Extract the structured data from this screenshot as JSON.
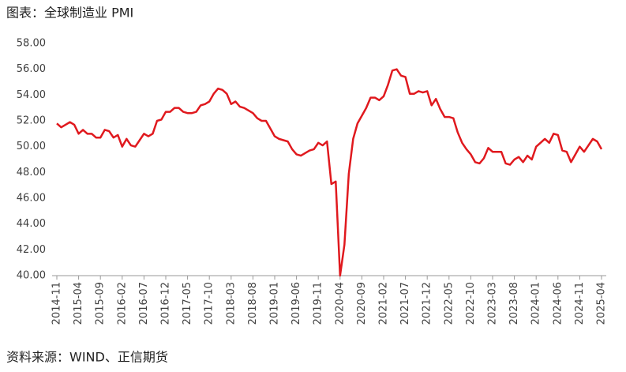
{
  "chart_data": {
    "type": "line",
    "title": "图表：全球制造业 PMI",
    "source": "资料来源：WIND、正信期货",
    "categories": [
      "2014-11",
      null,
      null,
      null,
      null,
      "2015-04",
      null,
      null,
      null,
      null,
      "2015-09",
      null,
      null,
      null,
      null,
      "2016-02",
      null,
      null,
      null,
      null,
      "2016-07",
      null,
      null,
      null,
      null,
      "2016-12",
      null,
      null,
      null,
      null,
      "2017-05",
      null,
      null,
      null,
      null,
      "2017-10",
      null,
      null,
      null,
      null,
      "2018-03",
      null,
      null,
      null,
      null,
      "2018-08",
      null,
      null,
      null,
      null,
      "2019-01",
      null,
      null,
      null,
      null,
      "2019-06",
      null,
      null,
      null,
      null,
      "2019-11",
      null,
      null,
      null,
      null,
      "2020-04",
      null,
      null,
      null,
      null,
      "2020-09",
      null,
      null,
      null,
      null,
      "2021-02",
      null,
      null,
      null,
      null,
      "2021-07",
      null,
      null,
      null,
      null,
      "2021-12",
      null,
      null,
      null,
      null,
      "2022-05",
      null,
      null,
      null,
      null,
      "2022-10",
      null,
      null,
      null,
      null,
      "2023-03",
      null,
      null,
      null,
      null,
      "2023-08",
      null,
      null,
      null,
      null,
      "2024-01",
      null,
      null,
      null,
      null,
      "2024-06",
      null,
      null,
      null,
      null,
      "2024-11",
      null,
      null,
      null,
      null,
      "2025-04"
    ],
    "series": [
      {
        "name": "全球制造业PMI",
        "color": "#e0191e",
        "values": [
          51.8,
          51.5,
          51.7,
          51.9,
          51.7,
          51.0,
          51.3,
          51.0,
          51.0,
          50.7,
          50.7,
          51.3,
          51.2,
          50.7,
          50.9,
          50.0,
          50.6,
          50.1,
          50.0,
          50.5,
          51.0,
          50.8,
          51.0,
          52.0,
          52.1,
          52.7,
          52.7,
          53.0,
          53.0,
          52.7,
          52.6,
          52.6,
          52.7,
          53.2,
          53.3,
          53.5,
          54.1,
          54.5,
          54.4,
          54.1,
          53.3,
          53.5,
          53.1,
          53.0,
          52.8,
          52.6,
          52.2,
          52.0,
          52.0,
          51.4,
          50.8,
          50.6,
          50.5,
          50.4,
          49.8,
          49.4,
          49.3,
          49.5,
          49.7,
          49.8,
          50.3,
          50.1,
          50.4,
          47.1,
          47.3,
          40.0,
          42.4,
          47.9,
          50.6,
          51.8,
          52.4,
          53.0,
          53.8,
          53.8,
          53.6,
          53.9,
          54.8,
          55.9,
          56.0,
          55.5,
          55.4,
          54.1,
          54.1,
          54.3,
          54.2,
          54.3,
          53.2,
          53.7,
          52.9,
          52.3,
          52.3,
          52.2,
          51.1,
          50.3,
          49.8,
          49.4,
          48.8,
          48.7,
          49.1,
          49.9,
          49.6,
          49.6,
          49.6,
          48.7,
          48.6,
          49.0,
          49.2,
          48.8,
          49.3,
          49.0,
          50.0,
          50.3,
          50.6,
          50.3,
          51.0,
          50.9,
          49.7,
          49.6,
          48.8,
          49.4,
          50.0,
          49.6,
          50.1,
          50.6,
          50.4,
          49.8
        ]
      }
    ],
    "ylim": [
      40,
      58
    ],
    "yticks": [
      {
        "value": 40,
        "label": "40.00"
      },
      {
        "value": 42,
        "label": "42.00"
      },
      {
        "value": 44,
        "label": "44.00"
      },
      {
        "value": 46,
        "label": "46.00"
      },
      {
        "value": 48,
        "label": "48.00"
      },
      {
        "value": 50,
        "label": "50.00"
      },
      {
        "value": 52,
        "label": "52.00"
      },
      {
        "value": 54,
        "label": "54.00"
      },
      {
        "value": 56,
        "label": "56.00"
      },
      {
        "value": 58,
        "label": "58.00"
      }
    ],
    "grid": false
  }
}
